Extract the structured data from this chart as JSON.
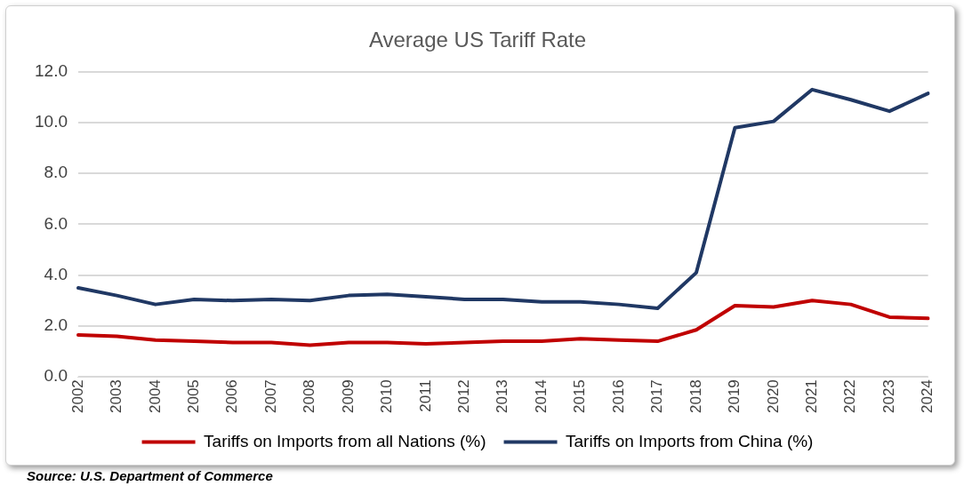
{
  "chart_data": {
    "type": "line",
    "title": "Average US Tariff Rate",
    "categories": [
      "2002",
      "2003",
      "2004",
      "2005",
      "2006",
      "2007",
      "2008",
      "2009",
      "2010",
      "2011",
      "2012",
      "2013",
      "2014",
      "2015",
      "2016",
      "2017",
      "2018",
      "2019",
      "2020",
      "2021",
      "2022",
      "2023",
      "2024"
    ],
    "series": [
      {
        "name": "Tariffs on Imports from all Nations (%)",
        "color": "#c00000",
        "values": [
          1.65,
          1.6,
          1.45,
          1.4,
          1.35,
          1.35,
          1.25,
          1.35,
          1.35,
          1.3,
          1.35,
          1.4,
          1.4,
          1.5,
          1.45,
          1.4,
          1.85,
          2.8,
          2.75,
          3.0,
          2.85,
          2.35,
          2.3
        ]
      },
      {
        "name": "Tariffs on Imports from China (%)",
        "color": "#203864",
        "values": [
          3.5,
          3.2,
          2.85,
          3.05,
          3.0,
          3.05,
          3.0,
          3.2,
          3.25,
          3.15,
          3.05,
          3.05,
          2.95,
          2.95,
          2.85,
          2.7,
          4.1,
          9.8,
          10.05,
          11.3,
          10.9,
          10.45,
          11.15
        ]
      }
    ],
    "ylim": [
      0,
      12
    ],
    "yticks": [
      {
        "value": 0,
        "label": "0.0"
      },
      {
        "value": 2,
        "label": "2.0"
      },
      {
        "value": 4,
        "label": "4.0"
      },
      {
        "value": 6,
        "label": "6.0"
      },
      {
        "value": 8,
        "label": "8.0"
      },
      {
        "value": 10,
        "label": "10.0"
      },
      {
        "value": 12,
        "label": "12.0"
      }
    ],
    "grid": "y",
    "legend": "bottom",
    "marker": "none",
    "line_style": "solid",
    "annotations": [
      "Source: U.S. Department of Commerce"
    ]
  }
}
